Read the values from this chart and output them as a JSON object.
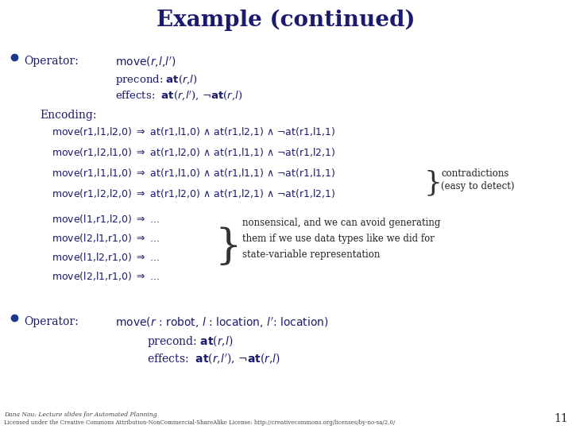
{
  "title": "Example (continued)",
  "title_color": "#1a1a6e",
  "title_fontsize": 20,
  "bg_color": "#ffffff",
  "bullet_color": "#1a3a8a",
  "body_color": "#1a1a6e",
  "mono_color": "#1a1a6e",
  "dark_color": "#111111",
  "slide_number": "11",
  "footer_line1": "Dana Nau: Lecture slides for Automated Planning",
  "footer_line2": "Licensed under the Creative Commons Attribution-NonCommercial-ShareAlike License: http://creativecommons.org/licenses/by-no-sa/2.0/"
}
